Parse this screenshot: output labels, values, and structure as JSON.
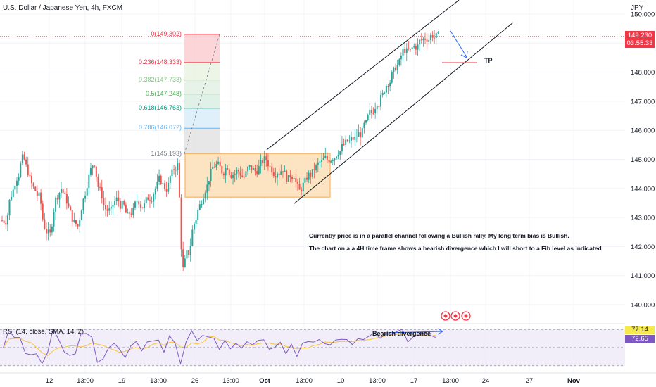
{
  "header": {
    "symbol_title": "U.S. Dollar / Japanese Yen, 4h, FXCM",
    "currency": "JPY"
  },
  "price_badge": {
    "price": "149.230",
    "countdown": "03:55:33"
  },
  "rsi": {
    "label": "RSI (14, close, SMA, 14, 2)",
    "value_a": "77.14",
    "value_b": "72.65",
    "levels": [
      "75.00",
      "50.00",
      "25.00"
    ],
    "annotation": "Bearish divergence"
  },
  "annotations": {
    "note1": "Currently price is in a parallel channel following a Bullish rally. My long term bias is Bullish.",
    "note2": "The chart on a a 4H time frame shows a bearish divergence which I will short to a Fib level as indicated",
    "tp": "TP"
  },
  "colors": {
    "bull": "#26a69a",
    "bear": "#ef5350",
    "rsi_line": "#7e57c2",
    "rsi_ma": "#f6c43a",
    "box": "#f6b25c"
  },
  "chart_data": {
    "type": "candlestick",
    "symbol": "USDJPY",
    "timeframe": "4h",
    "y_axis": {
      "ticks": [
        "150.000",
        "149.000",
        "148.000",
        "147.000",
        "146.000",
        "145.000",
        "144.000",
        "143.000",
        "142.000",
        "141.000",
        "140.000"
      ],
      "range": [
        139.6,
        150.3
      ]
    },
    "x_axis": {
      "ticks": [
        "12",
        "13:00",
        "19",
        "13:00",
        "26",
        "13:00",
        "Oct",
        "13:00",
        "10",
        "13:00",
        "17",
        "13:00",
        "24",
        "27",
        "Nov"
      ]
    },
    "fibonacci": [
      {
        "label": "0(149.302)",
        "level": 0,
        "price": 149.302
      },
      {
        "label": "0.236(148.333)",
        "level": 0.236,
        "price": 148.333
      },
      {
        "label": "0.382(147.733)",
        "level": 0.382,
        "price": 147.733
      },
      {
        "label": "0.5(147.248)",
        "level": 0.5,
        "price": 147.248
      },
      {
        "label": "0.618(146.763)",
        "level": 0.618,
        "price": 146.763
      },
      {
        "label": "0.786(146.072)",
        "level": 0.786,
        "price": 146.072
      },
      {
        "label": "1(145.193)",
        "level": 1,
        "price": 145.193
      }
    ],
    "consolidation_box": {
      "from": "25",
      "to": "9",
      "high": 145.2,
      "low": 143.7
    },
    "target_price": 148.33,
    "current_price": 149.23,
    "close_path": [
      [
        "0",
        142.9
      ],
      [
        "1",
        143.8
      ],
      [
        "2",
        144.4
      ],
      [
        "3",
        145.0
      ],
      [
        "4",
        144.6
      ],
      [
        "5",
        144.0
      ],
      [
        "6",
        143.7
      ],
      [
        "7",
        142.7
      ],
      [
        "8",
        142.4
      ],
      [
        "9",
        143.6
      ],
      [
        "10",
        144.0
      ],
      [
        "11",
        143.6
      ],
      [
        "12",
        143.0
      ],
      [
        "13",
        142.7
      ],
      [
        "14",
        143.6
      ],
      [
        "15",
        144.4
      ],
      [
        "16",
        144.9
      ],
      [
        "17",
        143.9
      ],
      [
        "18",
        143.3
      ],
      [
        "19",
        143.2
      ],
      [
        "20",
        143.6
      ],
      [
        "21",
        143.4
      ],
      [
        "22",
        143.0
      ],
      [
        "23",
        143.2
      ],
      [
        "24",
        143.6
      ],
      [
        "25",
        143.4
      ],
      [
        "26",
        143.7
      ],
      [
        "27",
        144.0
      ],
      [
        "28",
        144.3
      ],
      [
        "29",
        144.0
      ],
      [
        "30",
        144.5
      ],
      [
        "31",
        144.8
      ],
      [
        "32",
        141.2
      ],
      [
        "33",
        141.8
      ],
      [
        "34",
        142.8
      ],
      [
        "35",
        143.4
      ],
      [
        "36",
        144.0
      ],
      [
        "37",
        144.5
      ],
      [
        "38",
        144.8
      ],
      [
        "39",
        144.6
      ],
      [
        "40",
        144.8
      ],
      [
        "41",
        144.5
      ],
      [
        "42",
        144.6
      ],
      [
        "43",
        144.4
      ],
      [
        "44",
        144.7
      ],
      [
        "45",
        144.6
      ],
      [
        "46",
        144.8
      ],
      [
        "47",
        145.0
      ],
      [
        "48",
        144.7
      ],
      [
        "49",
        144.6
      ],
      [
        "50",
        144.7
      ],
      [
        "51",
        144.3
      ],
      [
        "52",
        144.5
      ],
      [
        "53",
        143.9
      ],
      [
        "54",
        144.2
      ],
      [
        "55",
        144.5
      ],
      [
        "56",
        144.7
      ],
      [
        "57",
        144.9
      ],
      [
        "58",
        145.0
      ],
      [
        "59",
        145.1
      ],
      [
        "60",
        145.3
      ],
      [
        "61",
        145.5
      ],
      [
        "62",
        145.6
      ],
      [
        "63",
        145.7
      ],
      [
        "64",
        145.9
      ],
      [
        "65",
        146.2
      ],
      [
        "66",
        146.6
      ],
      [
        "67",
        147.0
      ],
      [
        "68",
        147.2
      ],
      [
        "69",
        147.7
      ],
      [
        "70",
        148.0
      ],
      [
        "71",
        148.3
      ],
      [
        "72",
        148.8
      ],
      [
        "73",
        148.7
      ],
      [
        "74",
        148.9
      ],
      [
        "75",
        149.1
      ],
      [
        "76",
        149.2
      ],
      [
        "77",
        149.3
      ],
      [
        "78",
        149.2
      ]
    ]
  }
}
